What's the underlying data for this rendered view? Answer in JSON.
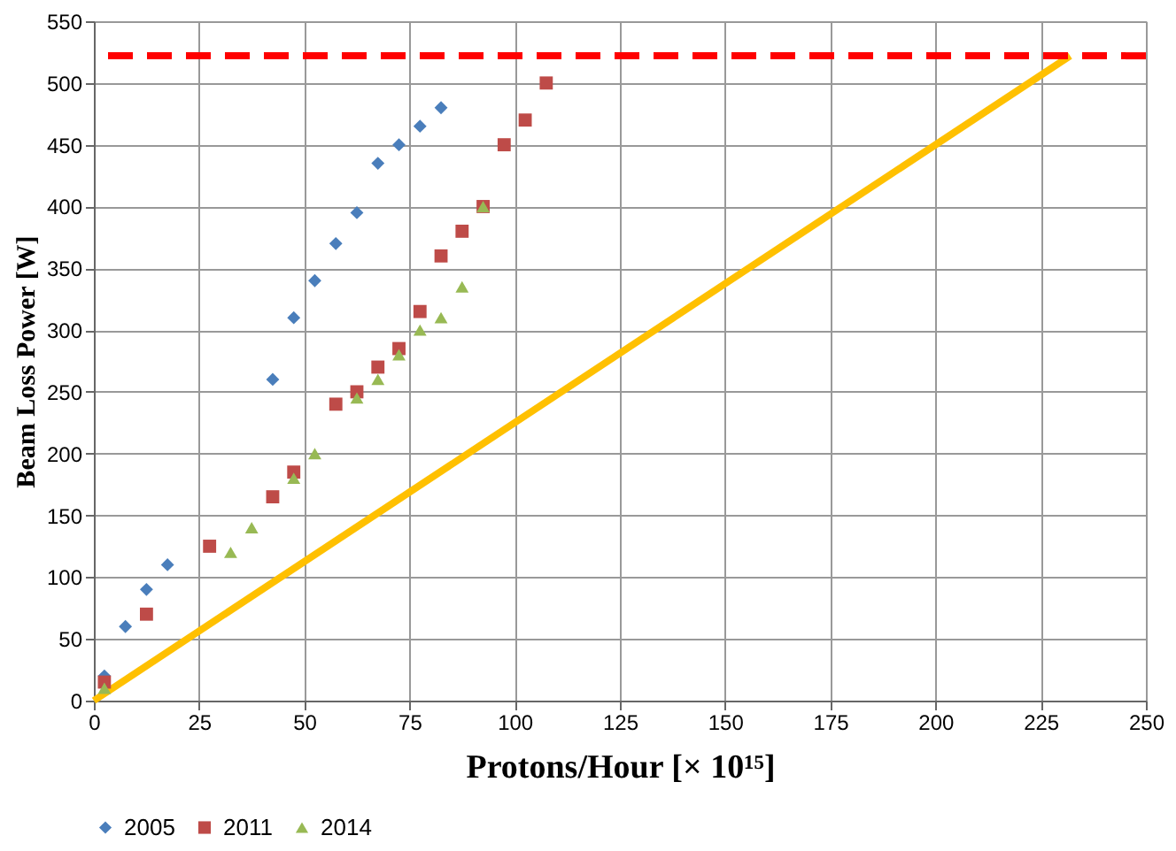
{
  "chart_data": {
    "type": "scatter",
    "xlabel": "Protons/Hour [× 10¹⁵]",
    "ylabel": "Beam Loss Power [W]",
    "xlim": [
      0,
      250
    ],
    "xticks": [
      0,
      25,
      50,
      75,
      100,
      125,
      150,
      175,
      200,
      225,
      250
    ],
    "ylim": [
      0,
      550
    ],
    "yticks": [
      0,
      50,
      100,
      150,
      200,
      250,
      300,
      350,
      400,
      450,
      500,
      550
    ],
    "grid": true,
    "legend": "bottom",
    "series": [
      {
        "name": "2005",
        "color": "#4a7ebb",
        "marker": "diamond",
        "x": [
          2.5,
          7.5,
          12.5,
          17.5,
          42.5,
          47.5,
          52.5,
          57.5,
          62.5,
          67.5,
          72.5,
          77.5,
          82.5
        ],
        "values": [
          20,
          60,
          90,
          110,
          260,
          310,
          340,
          370,
          395,
          435,
          450,
          465,
          480
        ]
      },
      {
        "name": "2011",
        "color": "#be4b48",
        "marker": "square",
        "x": [
          2.5,
          12.5,
          27.5,
          42.5,
          47.5,
          57.5,
          62.5,
          67.5,
          72.5,
          77.5,
          82.5,
          87.5,
          92.5,
          97.5,
          102.5,
          107.5
        ],
        "values": [
          15,
          70,
          125,
          165,
          185,
          240,
          250,
          270,
          285,
          315,
          360,
          380,
          400,
          450,
          470,
          500
        ]
      },
      {
        "name": "2014",
        "color": "#98b954",
        "marker": "triangle",
        "x": [
          2.5,
          32.5,
          37.5,
          47.5,
          52.5,
          62.5,
          67.5,
          72.5,
          77.5,
          82.5,
          87.5,
          92.5
        ],
        "values": [
          10,
          120,
          140,
          180,
          200,
          245,
          260,
          280,
          300,
          310,
          335,
          400
        ]
      },
      {
        "type": "line",
        "color": "#ffc000",
        "line_style": "solid",
        "marker": "none",
        "x": [
          0,
          232
        ],
        "values": [
          0,
          522
        ]
      }
    ],
    "ref_lines": [
      {
        "axis": "y",
        "value": 522,
        "color": "#ff0000",
        "line_style": "dashed"
      }
    ]
  }
}
